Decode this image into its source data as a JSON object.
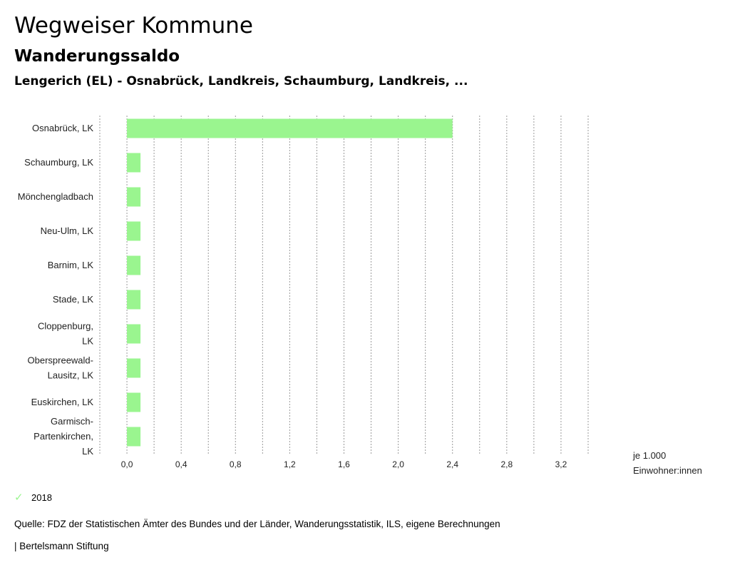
{
  "header": {
    "title": "Wegweiser Kommune",
    "subtitle": "Wanderungssaldo",
    "region": "Lengerich (EL) - Osnabrück, Landkreis, Schaumburg, Landkreis, ..."
  },
  "chart_data": {
    "type": "bar",
    "orientation": "horizontal",
    "categories": [
      [
        "Osnabrück, LK"
      ],
      [
        "Schaumburg, LK"
      ],
      [
        "Mönchengladbach"
      ],
      [
        "Neu-Ulm, LK"
      ],
      [
        "Barnim, LK"
      ],
      [
        "Stade, LK"
      ],
      [
        "Cloppenburg,",
        "LK"
      ],
      [
        "Oberspreewald-",
        "Lausitz, LK"
      ],
      [
        "Euskirchen, LK"
      ],
      [
        "Garmisch-",
        "Partenkirchen,",
        "LK"
      ]
    ],
    "series": [
      {
        "name": "2018",
        "color": "#9af58f",
        "values": [
          2.4,
          0.1,
          0.1,
          0.1,
          0.1,
          0.1,
          0.1,
          0.1,
          0.1,
          0.1
        ]
      }
    ],
    "xlim": [
      -0.2,
      3.4
    ],
    "xticks": [
      "0,0",
      "0,4",
      "0,8",
      "1,2",
      "1,6",
      "2,0",
      "2,4",
      "2,8",
      "3,2"
    ],
    "xtick_values": [
      0,
      0.4,
      0.8,
      1.2,
      1.6,
      2.0,
      2.4,
      2.8,
      3.2
    ],
    "grid_values": [
      -0.2,
      0,
      0.2,
      0.4,
      0.6,
      0.8,
      1.0,
      1.2,
      1.4,
      1.6,
      1.8,
      2.0,
      2.2,
      2.4,
      2.6,
      2.8,
      3.0,
      3.2,
      3.4
    ],
    "unit_label": [
      "je 1.000",
      "Einwohner:innen"
    ],
    "grid": true,
    "legend_position": "bottom-left"
  },
  "legend": {
    "label": "2018"
  },
  "footer": {
    "source": "Quelle: FDZ der Statistischen Ämter des Bundes und der Länder, Wanderungsstatistik, ILS, eigene Berechnungen",
    "publisher": "| Bertelsmann Stiftung"
  }
}
